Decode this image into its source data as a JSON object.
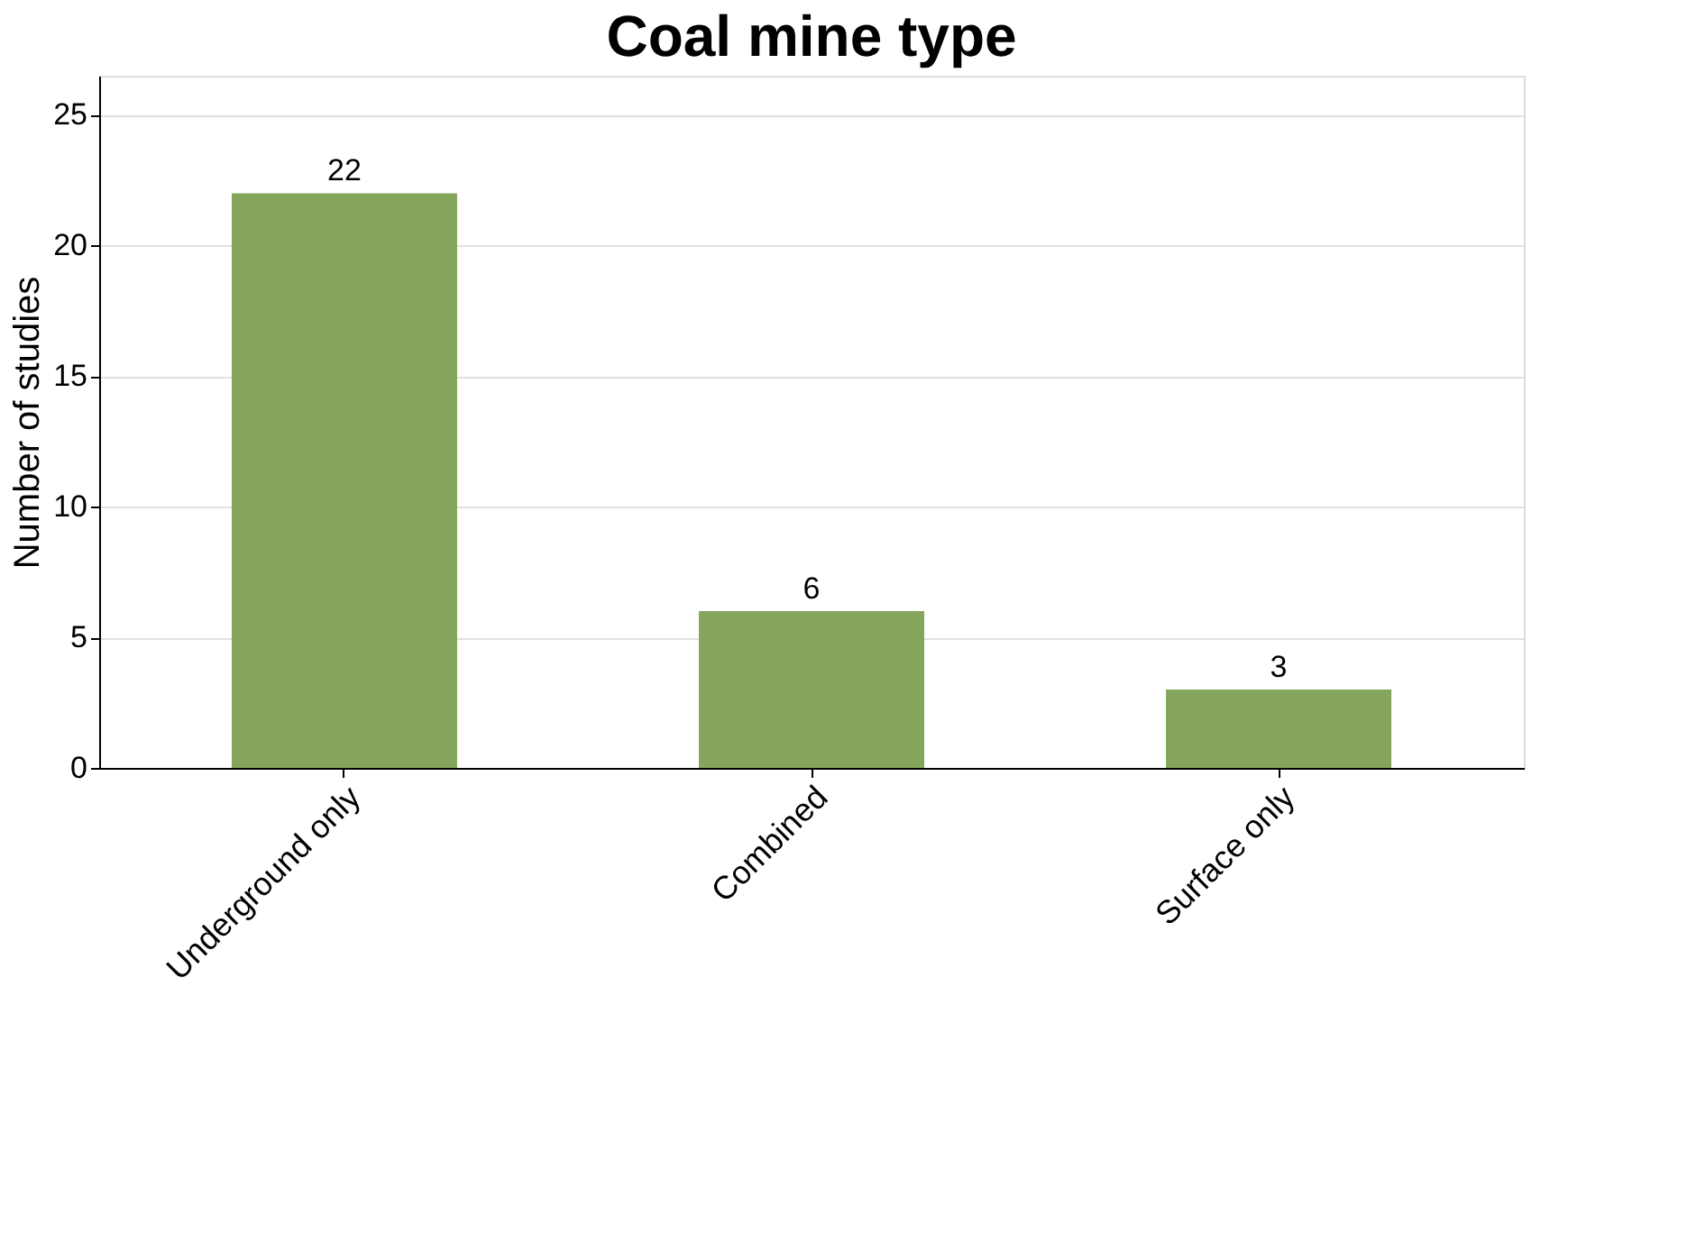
{
  "chart_data": {
    "type": "bar",
    "title": "Coal mine type",
    "ylabel": "Number of studies",
    "categories": [
      "Underground only",
      "Combined",
      "Surface only"
    ],
    "values": [
      22,
      6,
      3
    ],
    "color": "#84a55b",
    "ylim": [
      0,
      26.5
    ],
    "yticks": [
      0,
      5,
      10,
      15,
      20,
      25
    ],
    "grid": "y",
    "data_labels": true
  }
}
